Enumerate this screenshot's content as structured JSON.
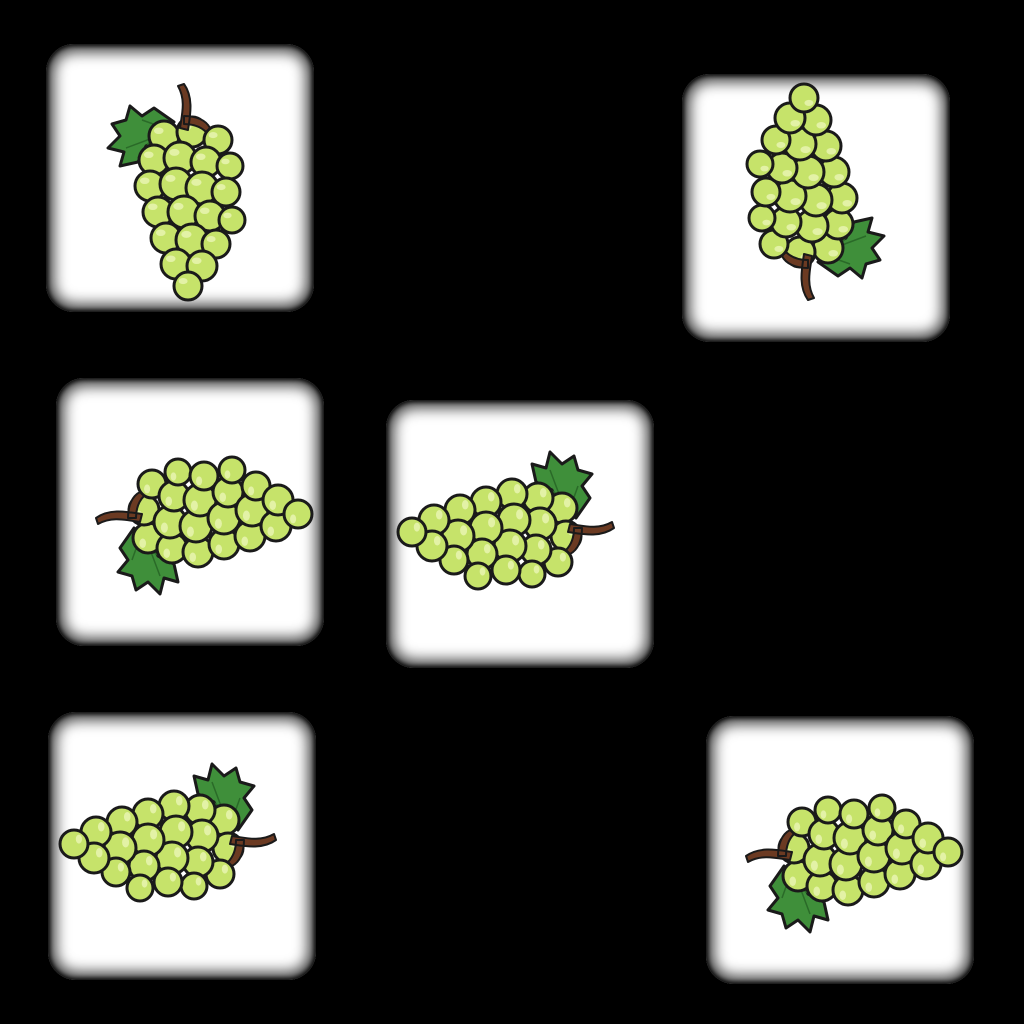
{
  "game": {
    "type": "memory-match",
    "background_color": "#000000",
    "tile_color": "#ffffff"
  },
  "tiles": [
    {
      "id": "t1",
      "icon": "grape-bunch-icon",
      "orientation": "vertical-stem-top-leaf-left",
      "face_up": true
    },
    {
      "id": "t2",
      "icon": "grape-bunch-icon",
      "orientation": "vertical-stem-bottom-leaf-right",
      "face_up": true
    },
    {
      "id": "t3",
      "icon": "grape-bunch-icon",
      "orientation": "horizontal-stem-left-leaf-bottom",
      "face_up": true
    },
    {
      "id": "t4",
      "icon": "grape-bunch-icon",
      "orientation": "horizontal-stem-right-leaf-top",
      "face_up": true
    },
    {
      "id": "t5",
      "icon": "grape-bunch-icon",
      "orientation": "horizontal-stem-right-leaf-top",
      "face_up": true
    },
    {
      "id": "t6",
      "icon": "grape-bunch-icon",
      "orientation": "horizontal-stem-left-leaf-bottom",
      "face_up": true
    }
  ],
  "colors": {
    "grape_fill": "#c6e36a",
    "grape_highlight": "#e8f5b0",
    "grape_outline": "#1a1a1a",
    "leaf_fill": "#3f8f3a",
    "leaf_outline": "#1a1a1a",
    "stem_fill": "#6b3a22"
  }
}
